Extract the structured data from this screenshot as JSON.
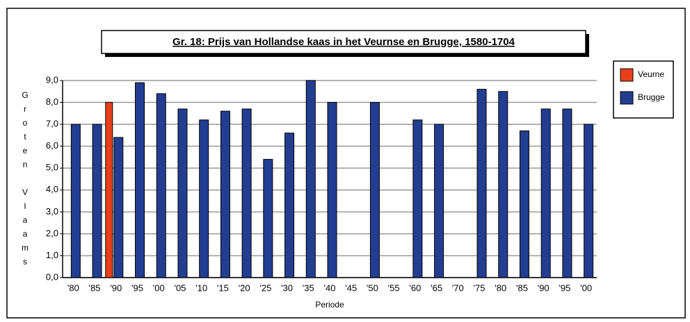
{
  "chart_data": {
    "type": "bar",
    "title": "Gr. 18: Prijs van Hollandse kaas in het Veurnse en Brugge, 1580-1704",
    "categories": [
      "'80",
      "'85",
      "'90",
      "'95",
      "'00",
      "'05",
      "'10",
      "'15",
      "'20",
      "'25",
      "'30",
      "'35",
      "'40",
      "'45",
      "'50",
      "'55",
      "'60",
      "'65",
      "'70",
      "'75",
      "'80",
      "'85",
      "'90",
      "'95",
      "'00"
    ],
    "series": [
      {
        "name": "Veurne",
        "color": "#e8401c",
        "values": [
          null,
          null,
          8.0,
          null,
          null,
          null,
          null,
          null,
          null,
          null,
          null,
          null,
          null,
          null,
          null,
          null,
          null,
          null,
          null,
          null,
          null,
          null,
          null,
          null,
          null
        ]
      },
      {
        "name": "Brugge",
        "color": "#233d91",
        "values": [
          7.0,
          7.0,
          6.4,
          8.9,
          8.4,
          7.7,
          7.2,
          7.6,
          7.7,
          5.4,
          6.6,
          9.0,
          8.0,
          null,
          8.0,
          null,
          7.2,
          7.0,
          null,
          8.6,
          8.5,
          6.7,
          7.7,
          7.7,
          7.0
        ]
      }
    ],
    "ylim": [
      0,
      9
    ],
    "yticks": [
      {
        "value": 0,
        "label": "0,0"
      },
      {
        "value": 1,
        "label": "1,0"
      },
      {
        "value": 2,
        "label": "2,0"
      },
      {
        "value": 3,
        "label": "3,0"
      },
      {
        "value": 4,
        "label": "4,0"
      },
      {
        "value": 5,
        "label": "5,0"
      },
      {
        "value": 6,
        "label": "6,0"
      },
      {
        "value": 7,
        "label": "7,0"
      },
      {
        "value": 8,
        "label": "8,0"
      },
      {
        "value": 9,
        "label": "9,0"
      }
    ],
    "y_label": "Groten Vlaams",
    "x_label": "Periode",
    "grid": true,
    "legend": "right"
  }
}
